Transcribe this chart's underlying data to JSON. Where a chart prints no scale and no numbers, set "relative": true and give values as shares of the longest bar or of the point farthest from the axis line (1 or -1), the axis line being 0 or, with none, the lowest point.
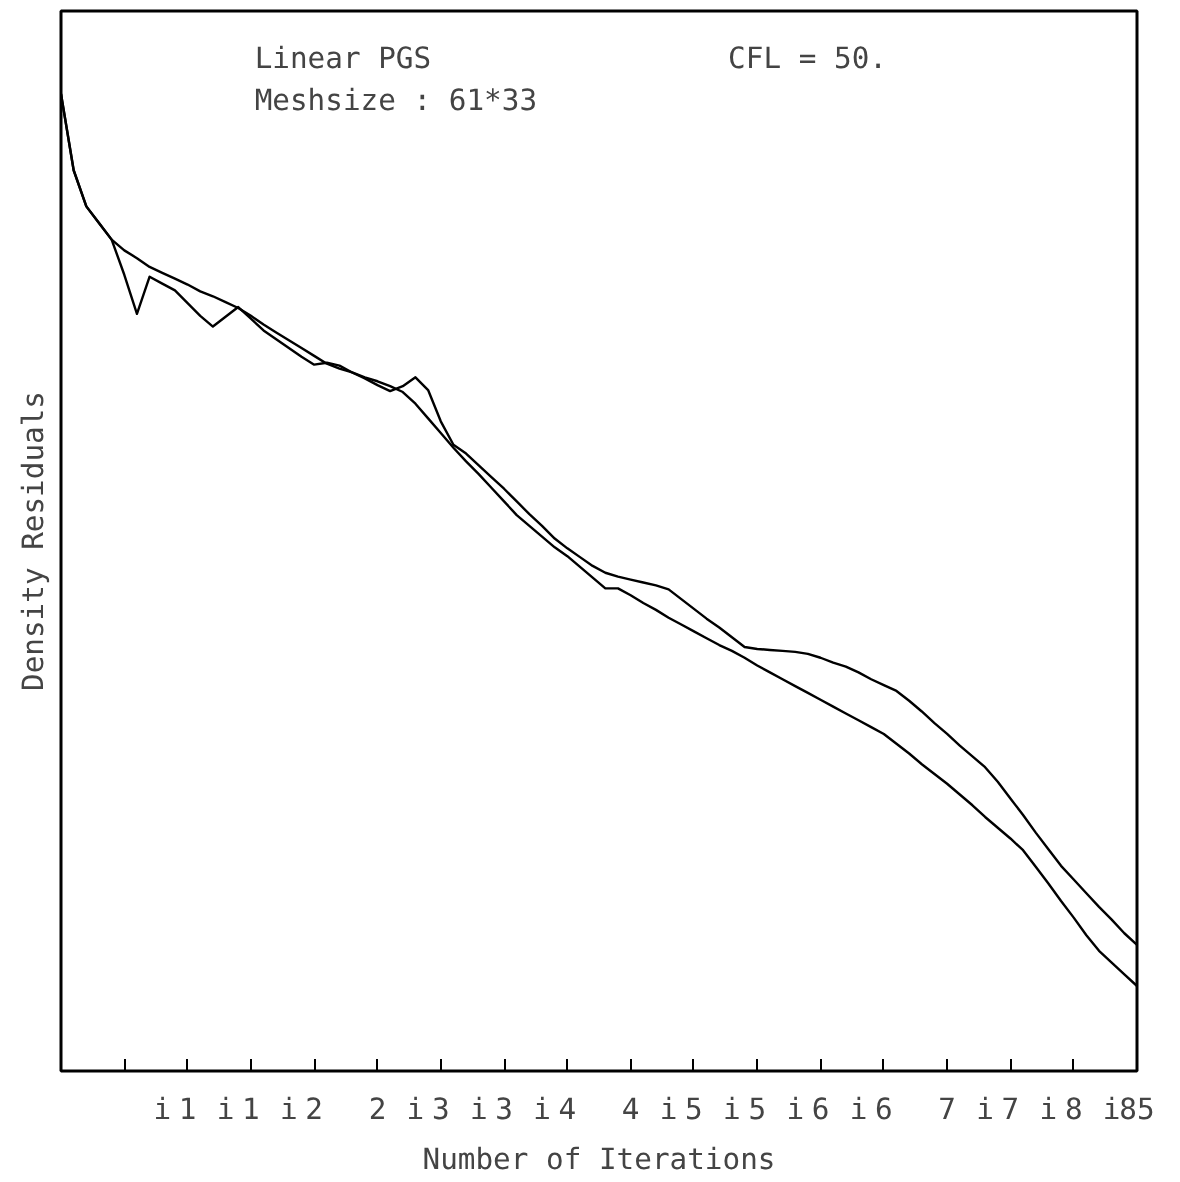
{
  "chart_data": {
    "type": "line",
    "xlabel": "Number of Iterations",
    "ylabel": "Density Residuals",
    "relative": true,
    "grid": false,
    "annotations": [
      "Linear PGS",
      "CFL =  50.",
      "Meshsize :  61*33"
    ],
    "categories": [
      null,
      null,
      null,
      null,
      null,
      null,
      null,
      null,
      "i",
      null,
      "1",
      null,
      null,
      "i",
      null,
      "1",
      null,
      null,
      "i",
      null,
      "2",
      null,
      null,
      null,
      null,
      "2",
      null,
      null,
      "i",
      null,
      "3",
      null,
      null,
      "i",
      null,
      "3",
      null,
      null,
      "i",
      null,
      "4",
      null,
      null,
      null,
      null,
      "4",
      null,
      null,
      "i",
      null,
      "5",
      null,
      null,
      "i",
      null,
      "5",
      null,
      null,
      "i",
      null,
      "6",
      null,
      null,
      "i",
      null,
      "6",
      null,
      null,
      null,
      null,
      "7",
      null,
      null,
      "i",
      null,
      "7",
      null,
      null,
      "i",
      null,
      "8",
      null,
      null,
      "i",
      null,
      "85"
    ],
    "series": [
      {
        "color": "#000000",
        "values": [
          1.0,
          0.922,
          0.885,
          0.868,
          0.851,
          0.84,
          0.832,
          0.823,
          0.817,
          0.811,
          0.805,
          0.798,
          0.793,
          0.787,
          0.781,
          0.773,
          0.764,
          0.756,
          0.748,
          0.74,
          0.732,
          0.724,
          0.719,
          0.715,
          0.71,
          0.706,
          0.701,
          0.695,
          0.683,
          0.668,
          0.653,
          0.638,
          0.624,
          0.611,
          0.597,
          0.583,
          0.569,
          0.558,
          0.547,
          0.536,
          0.527,
          0.516,
          0.505,
          0.494,
          0.494,
          0.487,
          0.479,
          0.472,
          0.464,
          0.457,
          0.45,
          0.443,
          0.436,
          0.43,
          0.423,
          0.415,
          0.408,
          0.401,
          0.394,
          0.387,
          0.38,
          0.373,
          0.366,
          0.359,
          0.352,
          0.345,
          0.335,
          0.325,
          0.314,
          0.304,
          0.294,
          0.283,
          0.272,
          0.26,
          0.249,
          0.238,
          0.226,
          0.209,
          0.192,
          0.174,
          0.157,
          0.139,
          0.123,
          0.111,
          0.099,
          0.087
        ]
      },
      {
        "color": "#000000",
        "values": [
          1.0,
          0.922,
          0.885,
          0.868,
          0.851,
          0.815,
          0.775,
          0.813,
          0.806,
          0.799,
          0.786,
          0.773,
          0.762,
          0.772,
          0.782,
          0.77,
          0.758,
          0.749,
          0.74,
          0.731,
          0.723,
          0.725,
          0.722,
          0.715,
          0.709,
          0.702,
          0.696,
          0.701,
          0.71,
          0.697,
          0.665,
          0.641,
          0.632,
          0.62,
          0.608,
          0.596,
          0.583,
          0.57,
          0.558,
          0.545,
          0.535,
          0.526,
          0.517,
          0.51,
          0.506,
          0.503,
          0.5,
          0.497,
          0.493,
          0.483,
          0.473,
          0.463,
          0.454,
          0.444,
          0.434,
          0.432,
          0.431,
          0.43,
          0.429,
          0.427,
          0.423,
          0.418,
          0.414,
          0.408,
          0.401,
          0.395,
          0.389,
          0.379,
          0.368,
          0.356,
          0.345,
          0.333,
          0.322,
          0.311,
          0.296,
          0.279,
          0.262,
          0.244,
          0.227,
          0.21,
          0.196,
          0.182,
          0.168,
          0.155,
          0.141,
          0.129
        ]
      }
    ]
  }
}
